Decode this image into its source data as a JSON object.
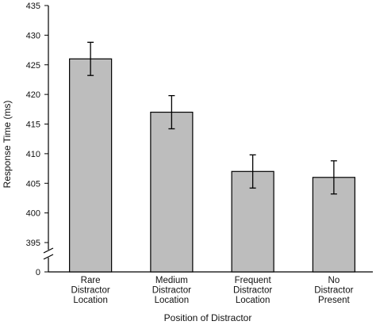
{
  "chart_data": {
    "type": "bar",
    "title": "",
    "xlabel": "Position  of  Distractor",
    "ylabel": "Response Time (ms)",
    "categories": [
      [
        "Rare",
        "Distractor",
        "Location"
      ],
      [
        "Medium",
        "Distractor",
        "Location"
      ],
      [
        "Frequent",
        "Distractor",
        "Location"
      ],
      [
        "No",
        "Distractor",
        "Present"
      ]
    ],
    "values": [
      426,
      417,
      407,
      406
    ],
    "errors": [
      2.8,
      2.8,
      2.8,
      2.8
    ],
    "yticks": [
      395,
      400,
      405,
      410,
      415,
      420,
      425,
      430,
      435
    ],
    "ylim": [
      395,
      435
    ],
    "axis_break": true,
    "axis_origin_label": "0",
    "grid": false,
    "bar_color": "#bdbdbd",
    "edge_color": "#000000"
  }
}
